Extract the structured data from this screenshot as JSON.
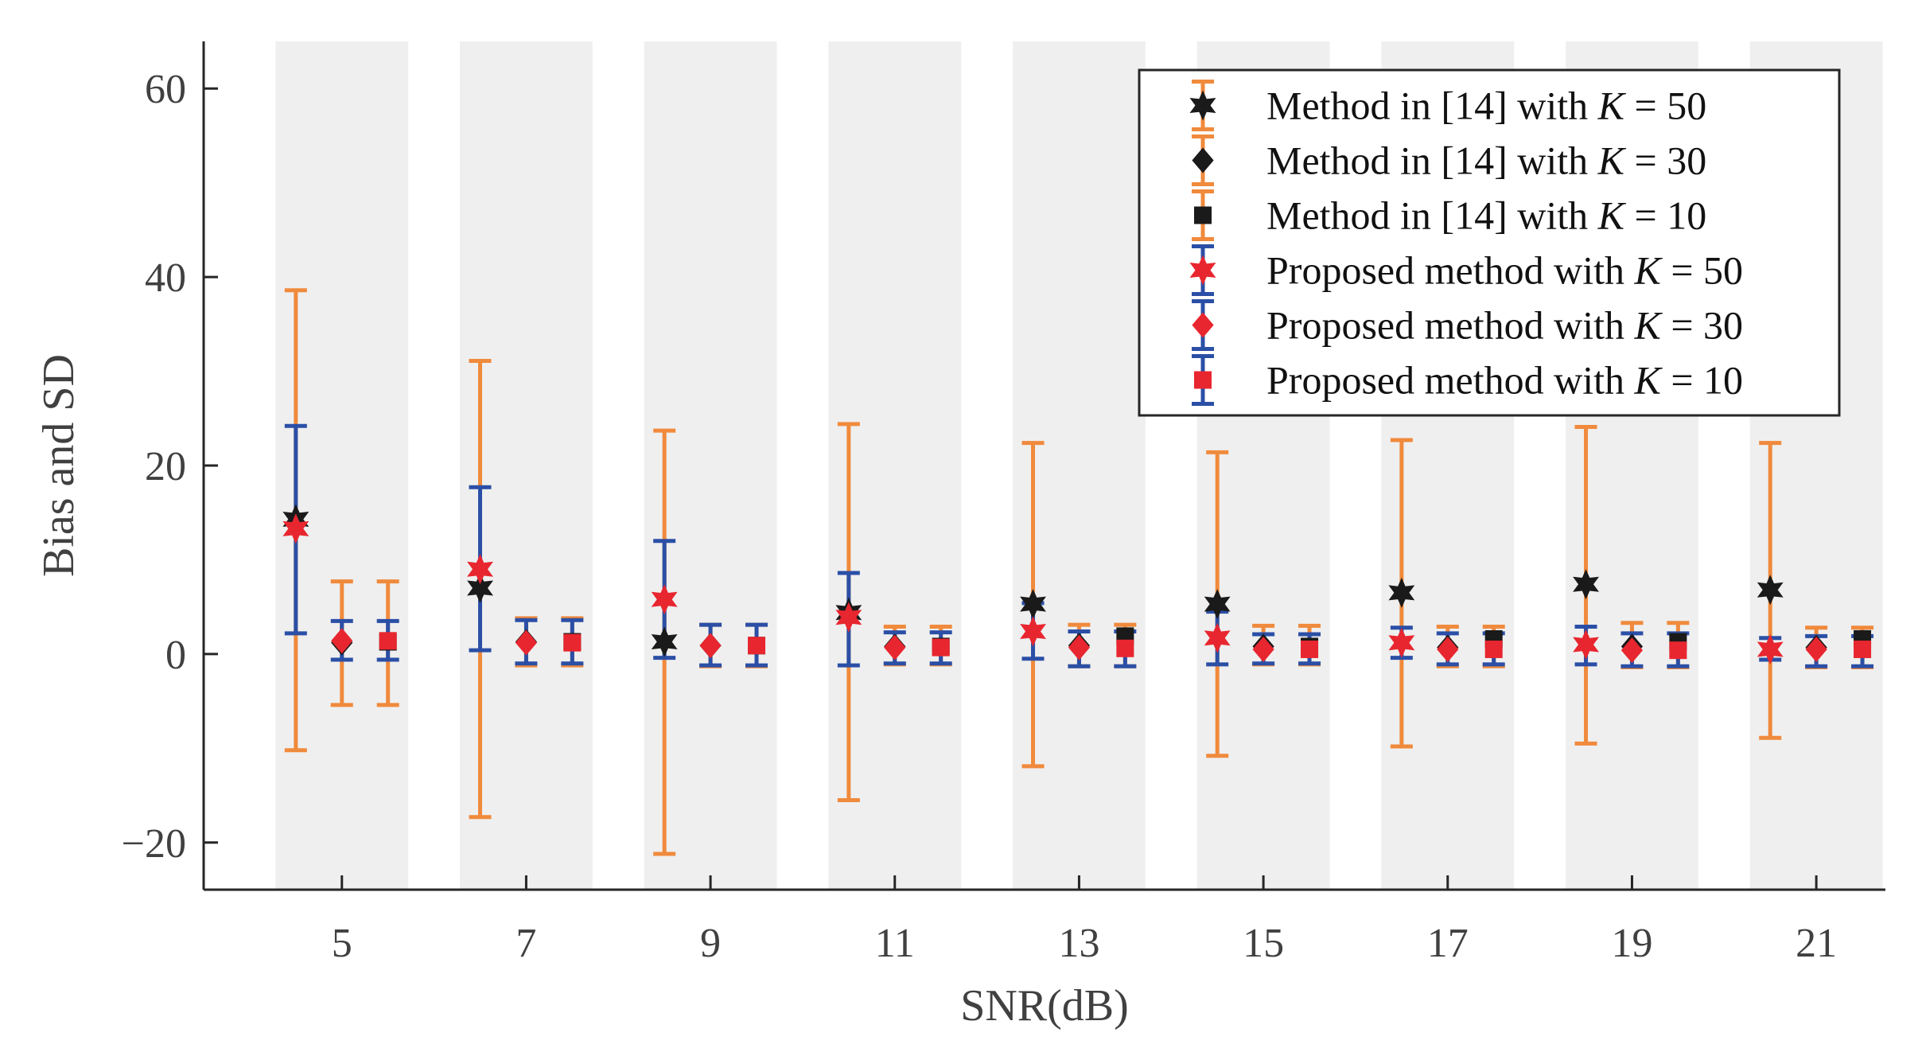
{
  "chart_data": {
    "type": "scatter",
    "xlabel": "SNR(dB)",
    "ylabel": "Bias and SD",
    "xlim": [
      3.5,
      21.75
    ],
    "ylim": [
      -25,
      65
    ],
    "xticks": [
      5,
      7,
      9,
      11,
      13,
      15,
      17,
      19,
      21
    ],
    "xtick_labels": [
      "5",
      "7",
      "9",
      "11",
      "13",
      "15",
      "17",
      "19",
      "21"
    ],
    "yticks": [
      -20,
      0,
      20,
      40,
      60
    ],
    "ytick_labels": [
      "−20",
      "0",
      "20",
      "40",
      "60"
    ],
    "background_bands": true,
    "legend_location": "top-right",
    "snr": [
      5,
      7,
      9,
      11,
      13,
      15,
      17,
      19,
      21
    ],
    "offsets": [
      -0.5,
      0,
      0.5
    ],
    "series": [
      {
        "group": "method14",
        "K": 50,
        "marker": "star",
        "marker_color": "#1a1a1a",
        "error_color": "#f08a3c",
        "legend_prefix": "Method in [14] with ",
        "legend_k": "K",
        "legend_suffix": " = 50",
        "values": [
          14.3,
          7.0,
          1.3,
          4.4,
          5.3,
          5.3,
          6.5,
          7.4,
          6.8
        ],
        "lower": [
          -10.2,
          -17.3,
          -21.2,
          -15.5,
          -11.9,
          -10.8,
          -9.8,
          -9.5,
          -8.9
        ],
        "upper": [
          38.6,
          31.1,
          23.7,
          24.4,
          22.4,
          21.4,
          22.7,
          24.1,
          22.4
        ]
      },
      {
        "group": "method14",
        "K": 30,
        "marker": "diamond",
        "marker_color": "#1a1a1a",
        "error_color": "#f08a3c",
        "legend_prefix": "Method in [14] with ",
        "legend_k": "K",
        "legend_suffix": " = 30",
        "values": [
          1.2,
          1.3,
          0.9,
          0.8,
          0.9,
          0.8,
          0.7,
          0.8,
          0.7
        ],
        "lower": [
          -5.4,
          -1.2,
          -1.3,
          -1.1,
          -1.3,
          -1.1,
          -1.3,
          -1.4,
          -1.4
        ],
        "upper": [
          7.7,
          3.8,
          3.1,
          2.9,
          3.1,
          3.0,
          2.9,
          3.3,
          2.8
        ]
      },
      {
        "group": "method14",
        "K": 10,
        "marker": "square",
        "marker_color": "#1a1a1a",
        "error_color": "#f08a3c",
        "legend_prefix": "Method in [14] with ",
        "legend_k": "K",
        "legend_suffix": " = 10",
        "values": [
          1.3,
          1.3,
          0.9,
          0.8,
          1.9,
          0.8,
          1.6,
          1.3,
          1.6
        ],
        "lower": [
          -5.4,
          -1.2,
          -1.3,
          -1.1,
          -1.3,
          -1.1,
          -1.3,
          -1.4,
          -1.4
        ],
        "upper": [
          7.7,
          3.8,
          3.1,
          2.9,
          3.1,
          3.0,
          2.9,
          3.3,
          2.8
        ]
      },
      {
        "group": "proposed",
        "K": 50,
        "marker": "star",
        "marker_color": "#e8262f",
        "error_color": "#2b4fa6",
        "legend_prefix": "Proposed method with ",
        "legend_k": "K",
        "legend_suffix": " = 50",
        "values": [
          13.3,
          9.0,
          5.8,
          3.9,
          2.4,
          1.7,
          1.2,
          1.0,
          0.5
        ],
        "lower": [
          2.2,
          0.4,
          -0.4,
          -1.2,
          -0.5,
          -1.1,
          -0.4,
          -1.1,
          -0.6
        ],
        "upper": [
          24.2,
          17.7,
          12.0,
          8.6,
          5.4,
          4.5,
          2.8,
          2.9,
          1.7
        ]
      },
      {
        "group": "proposed",
        "K": 30,
        "marker": "diamond",
        "marker_color": "#e8262f",
        "error_color": "#2b4fa6",
        "legend_prefix": "Proposed method with ",
        "legend_k": "K",
        "legend_suffix": " = 30",
        "values": [
          1.4,
          1.2,
          0.9,
          0.7,
          0.7,
          0.5,
          0.5,
          0.4,
          0.5
        ],
        "lower": [
          -0.6,
          -1.0,
          -1.2,
          -1.0,
          -1.3,
          -1.0,
          -1.1,
          -1.3,
          -1.3
        ],
        "upper": [
          3.5,
          3.6,
          3.1,
          2.3,
          2.4,
          2.1,
          2.2,
          2.2,
          1.9
        ]
      },
      {
        "group": "proposed",
        "K": 10,
        "marker": "square",
        "marker_color": "#e8262f",
        "error_color": "#2b4fa6",
        "legend_prefix": "Proposed method with ",
        "legend_k": "K",
        "legend_suffix": " = 10",
        "values": [
          1.4,
          1.2,
          0.9,
          0.7,
          0.6,
          0.5,
          0.5,
          0.4,
          0.5
        ],
        "lower": [
          -0.6,
          -1.0,
          -1.2,
          -1.0,
          -1.3,
          -1.0,
          -1.1,
          -1.3,
          -1.3
        ],
        "upper": [
          3.5,
          3.6,
          3.1,
          2.3,
          2.4,
          2.1,
          2.2,
          2.2,
          1.9
        ]
      }
    ]
  }
}
